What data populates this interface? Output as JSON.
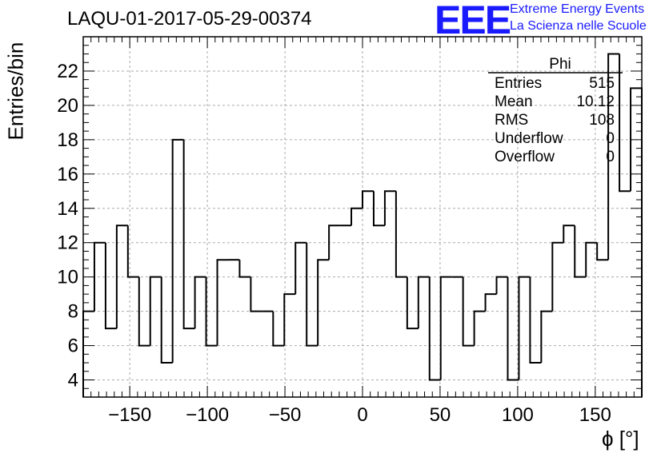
{
  "header": {
    "title": "LAQU-01-2017-05-29-00374",
    "logo_text": "EEE",
    "logo_line1": "Extreme Energy Events",
    "logo_line2": "La Scienza nelle Scuole"
  },
  "colors": {
    "logo": "#1a1aff",
    "line": "#000000",
    "grid": "#aaaaaa"
  },
  "stats_box": {
    "name": "Phi",
    "rows": [
      {
        "label": "Entries",
        "value": "515"
      },
      {
        "label": "Mean",
        "value": "10.12"
      },
      {
        "label": "RMS",
        "value": "108"
      },
      {
        "label": "Underflow",
        "value": "0"
      },
      {
        "label": "Overflow",
        "value": "0"
      }
    ]
  },
  "chart_data": {
    "type": "histogram",
    "title": "LAQU-01-2017-05-29-00374",
    "xlabel": "ϕ [°]",
    "ylabel": "Entries/bin",
    "xlim": [
      -180,
      180
    ],
    "ylim": [
      3,
      24
    ],
    "bin_width": 7.2,
    "bin_start": -180,
    "x_ticks": [
      -150,
      -100,
      -50,
      0,
      50,
      100,
      150
    ],
    "x_tick_labels": [
      "−150",
      "−100",
      "−50",
      "0",
      "50",
      "100",
      "150"
    ],
    "y_ticks": [
      4,
      6,
      8,
      10,
      12,
      14,
      16,
      18,
      20,
      22
    ],
    "y_tick_labels": [
      "4",
      "6",
      "8",
      "10",
      "12",
      "14",
      "16",
      "18",
      "20",
      "22"
    ],
    "grid": true,
    "values": [
      8,
      12,
      7,
      13,
      10,
      6,
      10,
      5,
      18,
      7,
      10,
      6,
      11,
      11,
      10,
      8,
      8,
      6,
      9,
      12,
      6,
      11,
      13,
      13,
      14,
      15,
      13,
      15,
      10,
      7,
      10,
      4,
      10,
      10,
      6,
      8,
      9,
      10,
      4,
      10,
      5,
      8,
      12,
      13,
      10,
      12,
      11,
      23,
      15,
      21
    ]
  }
}
